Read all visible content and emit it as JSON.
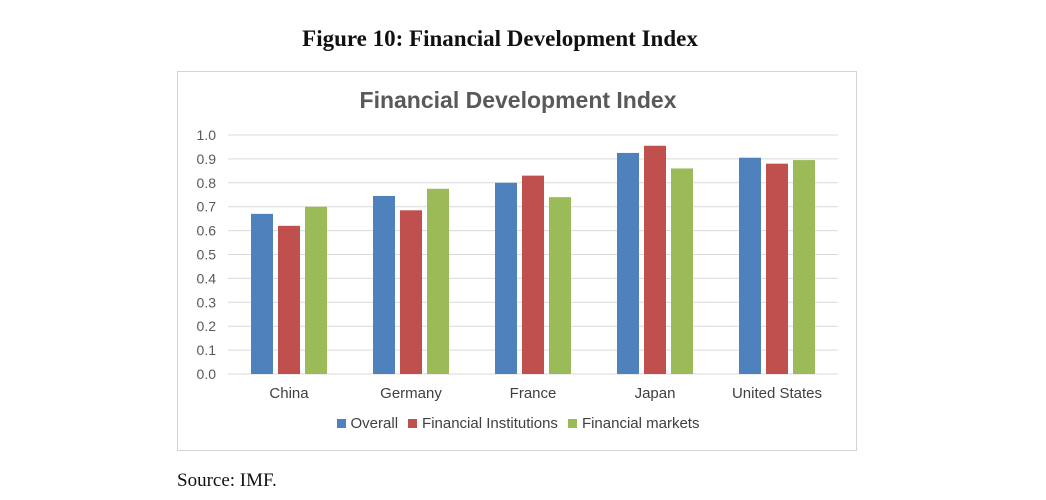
{
  "figure": {
    "title": "Figure 10: Financial Development Index",
    "source": "Source: IMF."
  },
  "chart_data": {
    "type": "bar",
    "title": "Financial Development Index",
    "categories": [
      "China",
      "Germany",
      "France",
      "Japan",
      "United States"
    ],
    "series": [
      {
        "name": "Overall",
        "color": "#4f81bd",
        "values": [
          0.67,
          0.745,
          0.8,
          0.925,
          0.905
        ]
      },
      {
        "name": "Financial Institutions",
        "color": "#c0504d",
        "values": [
          0.62,
          0.685,
          0.83,
          0.955,
          0.88
        ]
      },
      {
        "name": "Financial markets",
        "color": "#9bbb59",
        "values": [
          0.7,
          0.775,
          0.74,
          0.86,
          0.895
        ]
      }
    ],
    "yticks": [
      "0.0",
      "0.1",
      "0.2",
      "0.3",
      "0.4",
      "0.5",
      "0.6",
      "0.7",
      "0.8",
      "0.9",
      "1.0"
    ],
    "ylim": [
      0,
      1.0
    ],
    "grid": true,
    "legend_position": "bottom"
  }
}
